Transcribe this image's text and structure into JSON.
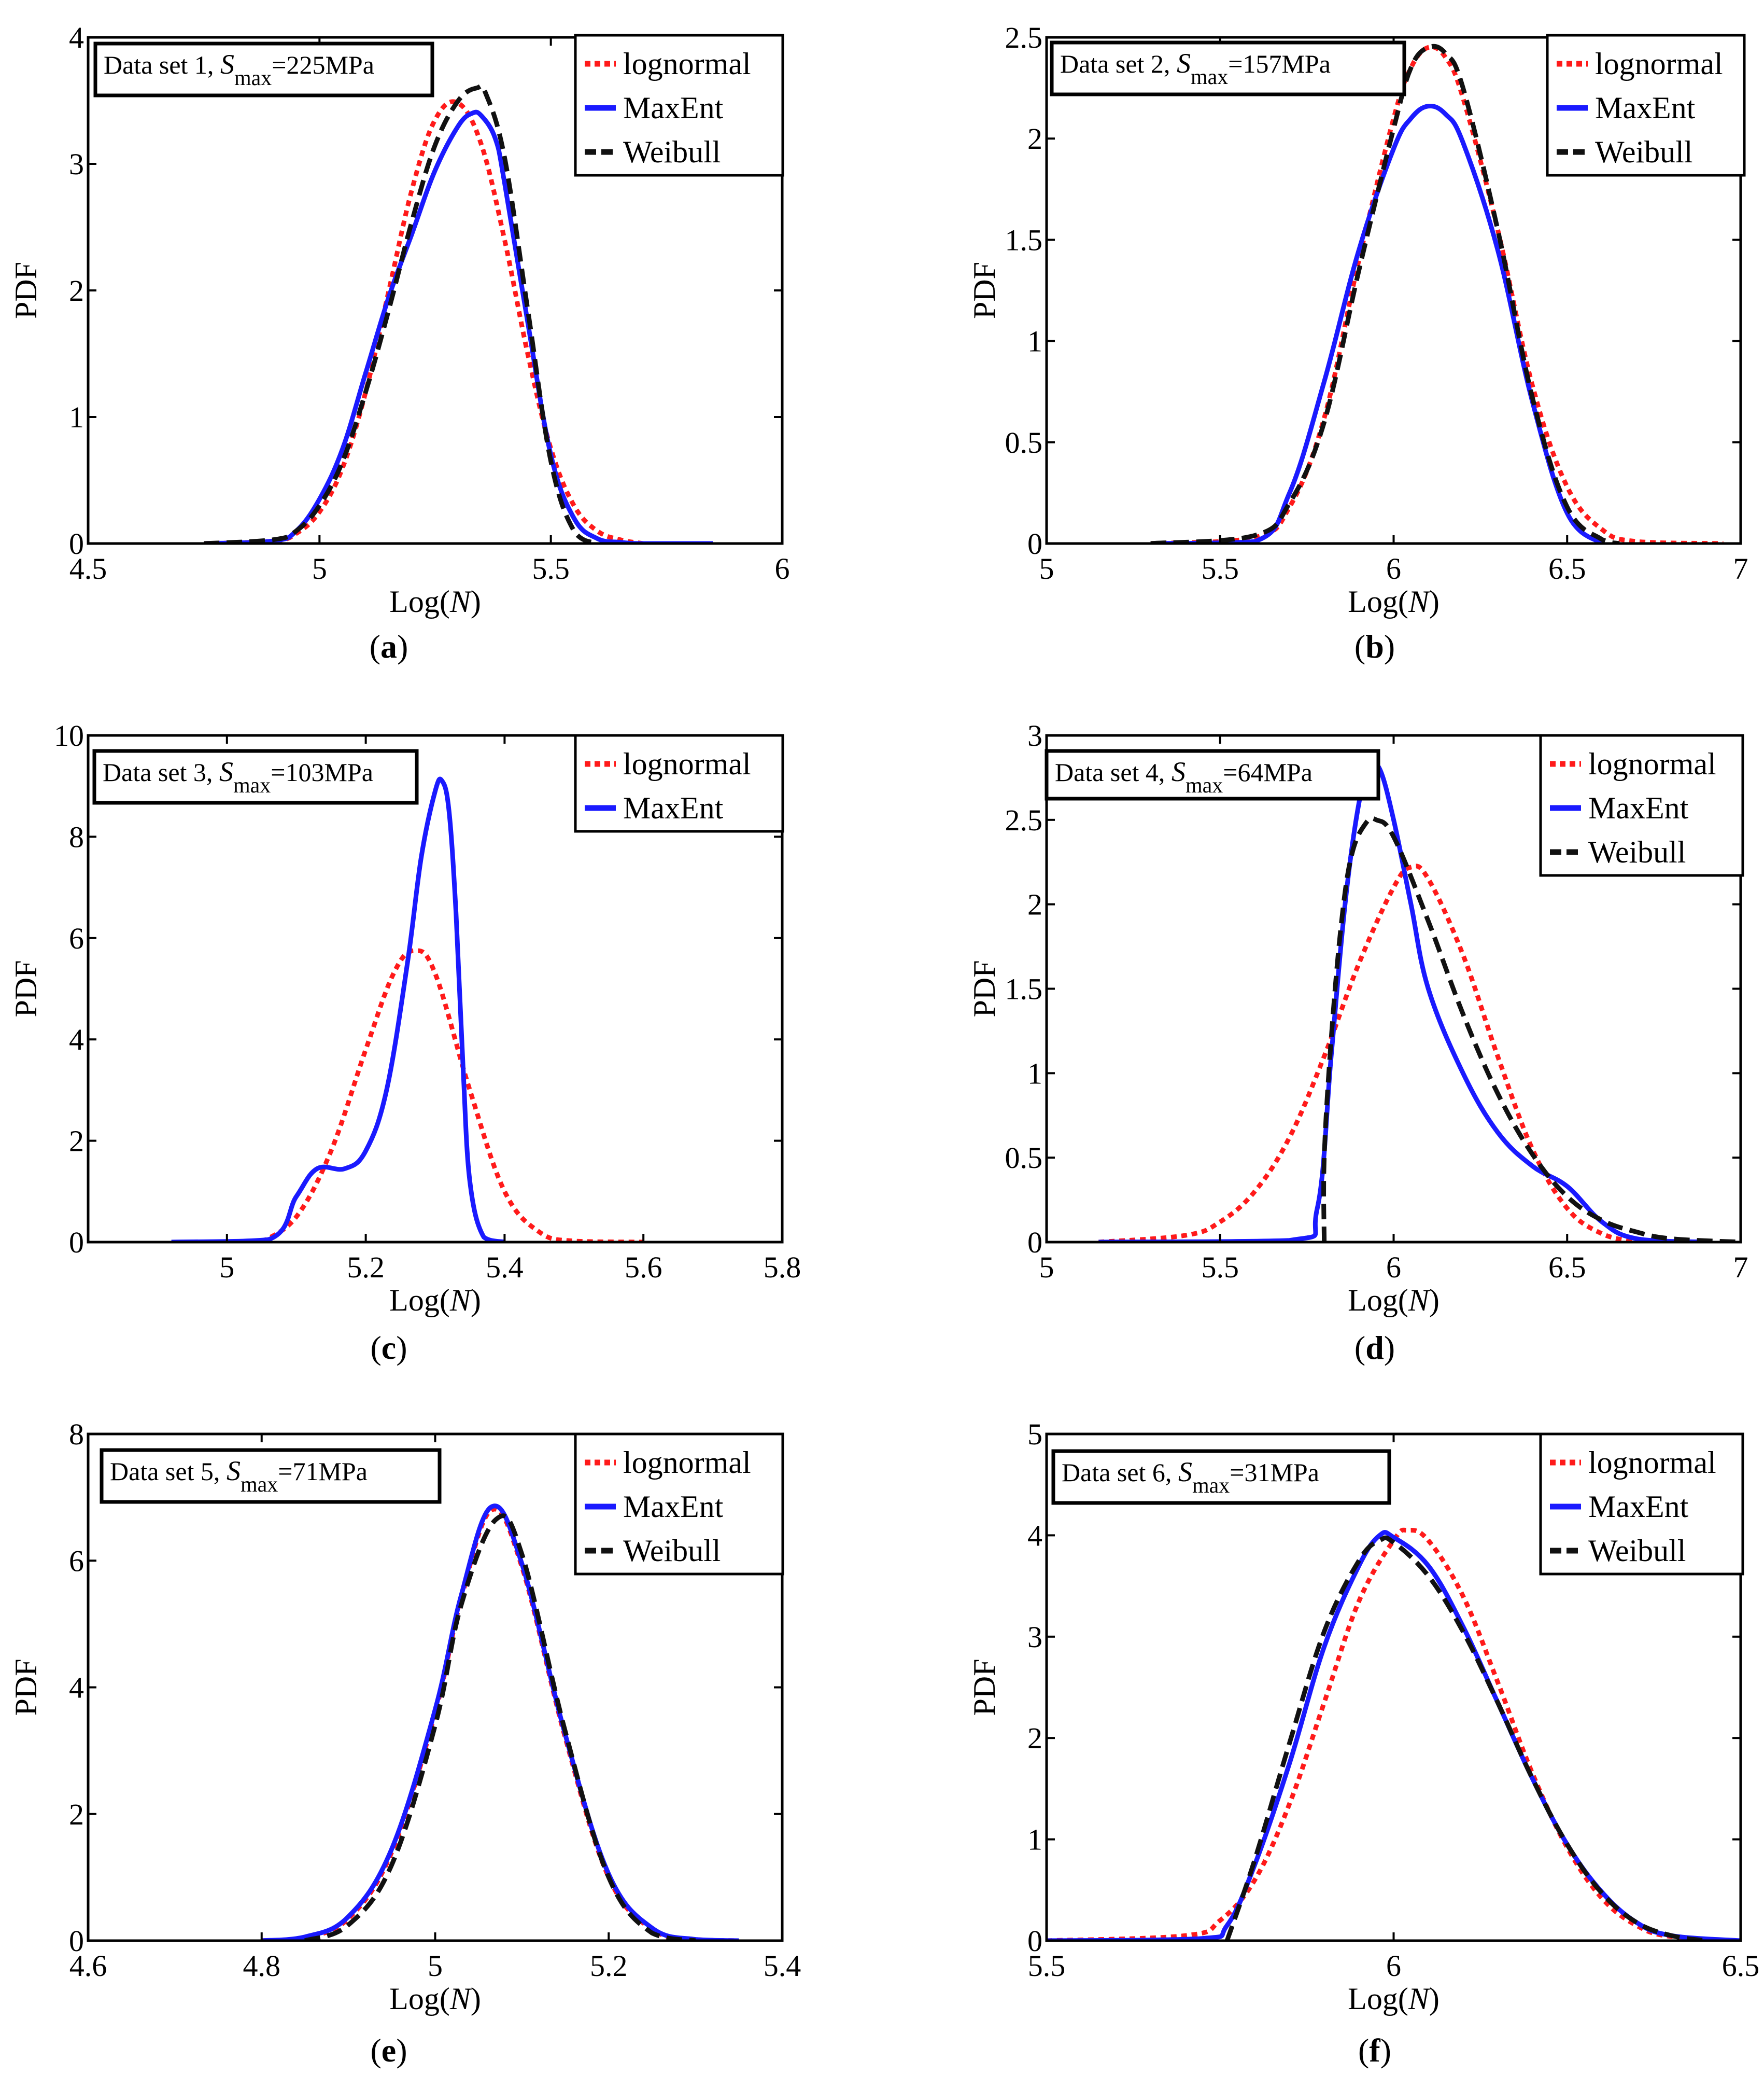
{
  "figure": {
    "series_styles": {
      "lognormal": {
        "color": "#ff1a1a",
        "dash": "dotted"
      },
      "MaxEnt": {
        "color": "#1a1aff",
        "dash": "solid"
      },
      "Weibull": {
        "color": "#111111",
        "dash": "dashed"
      }
    }
  },
  "chart_data": [
    {
      "id": "a",
      "type": "line",
      "caption": "a",
      "info": {
        "prefix": "Data set 1, ",
        "S": "S",
        "sub": "max",
        "suffix": "=225MPa"
      },
      "xlabel": "Log(N)",
      "ylabel": "PDF",
      "xlim": [
        4.5,
        6
      ],
      "ylim": [
        0,
        4
      ],
      "xticks": [
        4.5,
        5,
        5.5,
        6
      ],
      "yticks": [
        0,
        1,
        2,
        3,
        4
      ],
      "xtick_labels": [
        "4.5",
        "5",
        "5.5",
        "6"
      ],
      "ytick_labels": [
        "0",
        "1",
        "2",
        "3",
        "4"
      ],
      "legend": [
        "lognormal",
        "MaxEnt",
        "Weibull"
      ],
      "series": [
        {
          "name": "lognormal",
          "x": [
            4.75,
            4.9,
            4.95,
            5.0,
            5.05,
            5.1,
            5.15,
            5.2,
            5.25,
            5.3,
            5.35,
            5.4,
            5.45,
            5.5,
            5.55,
            5.6,
            5.65,
            5.7
          ],
          "y": [
            0,
            0.02,
            0.08,
            0.25,
            0.6,
            1.2,
            2.0,
            2.8,
            3.35,
            3.48,
            3.15,
            2.4,
            1.5,
            0.75,
            0.3,
            0.1,
            0.03,
            0
          ]
        },
        {
          "name": "MaxEnt",
          "x": [
            4.75,
            4.9,
            4.95,
            5.0,
            5.05,
            5.1,
            5.15,
            5.2,
            5.25,
            5.3,
            5.33,
            5.35,
            5.38,
            5.4,
            5.45,
            5.5,
            5.55,
            5.6,
            5.65,
            5.7,
            5.85
          ],
          "y": [
            0,
            0.02,
            0.1,
            0.35,
            0.75,
            1.35,
            1.95,
            2.45,
            2.95,
            3.3,
            3.4,
            3.38,
            3.2,
            2.85,
            1.75,
            0.7,
            0.2,
            0.04,
            0.01,
            0,
            0
          ]
        },
        {
          "name": "Weibull",
          "x": [
            4.75,
            4.9,
            4.95,
            5.0,
            5.05,
            5.1,
            5.15,
            5.2,
            5.25,
            5.3,
            5.34,
            5.36,
            5.4,
            5.45,
            5.5,
            5.55,
            5.6
          ],
          "y": [
            0,
            0.03,
            0.1,
            0.3,
            0.65,
            1.2,
            1.85,
            2.55,
            3.15,
            3.5,
            3.6,
            3.55,
            3.05,
            1.85,
            0.65,
            0.1,
            0
          ]
        }
      ]
    },
    {
      "id": "b",
      "type": "line",
      "caption": "b",
      "info": {
        "prefix": "Data set 2, ",
        "S": "S",
        "sub": "max",
        "suffix": "=157MPa"
      },
      "xlabel": "Log(N)",
      "ylabel": "PDF",
      "xlim": [
        5,
        7
      ],
      "ylim": [
        0,
        2.5
      ],
      "xticks": [
        5,
        5.5,
        6,
        6.5,
        7
      ],
      "yticks": [
        0,
        0.5,
        1,
        1.5,
        2,
        2.5
      ],
      "xtick_labels": [
        "5",
        "5.5",
        "6",
        "6.5",
        "7"
      ],
      "ytick_labels": [
        "0",
        "0.5",
        "1",
        "1.5",
        "2",
        "2.5"
      ],
      "legend": [
        "lognormal",
        "MaxEnt",
        "Weibull"
      ],
      "series": [
        {
          "name": "lognormal",
          "x": [
            5.3,
            5.6,
            5.7,
            5.8,
            5.9,
            6.0,
            6.05,
            6.1,
            6.15,
            6.2,
            6.3,
            6.4,
            6.5,
            6.6,
            6.7,
            6.95
          ],
          "y": [
            0,
            0.03,
            0.18,
            0.62,
            1.4,
            2.1,
            2.35,
            2.45,
            2.4,
            2.2,
            1.55,
            0.78,
            0.28,
            0.07,
            0.01,
            0
          ]
        },
        {
          "name": "MaxEnt",
          "x": [
            5.3,
            5.6,
            5.7,
            5.8,
            5.9,
            6.0,
            6.05,
            6.1,
            6.15,
            6.2,
            6.3,
            6.4,
            6.5,
            6.6
          ],
          "y": [
            0,
            0.01,
            0.25,
            0.8,
            1.45,
            1.95,
            2.1,
            2.16,
            2.12,
            1.98,
            1.45,
            0.7,
            0.15,
            0
          ]
        },
        {
          "name": "Weibull",
          "x": [
            5.3,
            5.6,
            5.7,
            5.8,
            5.9,
            6.0,
            6.05,
            6.1,
            6.15,
            6.2,
            6.3,
            6.4,
            6.5,
            6.6,
            6.65
          ],
          "y": [
            0,
            0.04,
            0.2,
            0.6,
            1.35,
            2.05,
            2.35,
            2.45,
            2.42,
            2.25,
            1.55,
            0.72,
            0.18,
            0.02,
            0
          ]
        }
      ]
    },
    {
      "id": "c",
      "type": "line",
      "caption": "c",
      "info": {
        "prefix": "Data set 3, ",
        "S": "S",
        "sub": "max",
        "suffix": "=103MPa"
      },
      "xlabel": "Log(N)",
      "ylabel": "PDF",
      "xlim": [
        4.8,
        5.8
      ],
      "ylim": [
        0,
        10
      ],
      "xticks": [
        5,
        5.2,
        5.4,
        5.6,
        5.8
      ],
      "yticks": [
        0,
        2,
        4,
        6,
        8,
        10
      ],
      "xtick_labels": [
        "5",
        "5.2",
        "5.4",
        "5.6",
        "5.8"
      ],
      "ytick_labels": [
        "0",
        "2",
        "4",
        "6",
        "8",
        "10"
      ],
      "legend": [
        "lognormal",
        "MaxEnt"
      ],
      "series": [
        {
          "name": "lognormal",
          "x": [
            5.05,
            5.1,
            5.15,
            5.2,
            5.24,
            5.27,
            5.3,
            5.35,
            5.4,
            5.45,
            5.5,
            5.6
          ],
          "y": [
            0,
            0.5,
            1.8,
            3.8,
            5.3,
            5.75,
            5.3,
            3.0,
            1.0,
            0.2,
            0.02,
            0
          ]
        },
        {
          "name": "MaxEnt",
          "x": [
            4.92,
            5.06,
            5.1,
            5.13,
            5.17,
            5.2,
            5.23,
            5.26,
            5.28,
            5.3,
            5.31,
            5.32,
            5.33,
            5.34,
            5.35,
            5.37,
            5.4
          ],
          "y": [
            0,
            0.05,
            0.9,
            1.45,
            1.45,
            1.8,
            3.0,
            5.5,
            7.6,
            8.9,
            9.1,
            8.5,
            6.5,
            3.5,
            1.2,
            0.1,
            0
          ]
        }
      ]
    },
    {
      "id": "d",
      "type": "line",
      "caption": "d",
      "info": {
        "prefix": "Data set 4, ",
        "S": "S",
        "sub": "max",
        "suffix": "=64MPa"
      },
      "xlabel": "Log(N)",
      "ylabel": "PDF",
      "xlim": [
        5,
        7
      ],
      "ylim": [
        0,
        3
      ],
      "xticks": [
        5,
        5.5,
        6,
        6.5,
        7
      ],
      "yticks": [
        0,
        0.5,
        1,
        1.5,
        2,
        2.5,
        3
      ],
      "xtick_labels": [
        "5",
        "5.5",
        "6",
        "6.5",
        "7"
      ],
      "ytick_labels": [
        "0",
        "0.5",
        "1",
        "1.5",
        "2",
        "2.5",
        "3"
      ],
      "legend": [
        "lognormal",
        "MaxEnt",
        "Weibull"
      ],
      "series": [
        {
          "name": "lognormal",
          "x": [
            5.15,
            5.4,
            5.5,
            5.6,
            5.7,
            5.8,
            5.9,
            6.0,
            6.05,
            6.1,
            6.2,
            6.3,
            6.4,
            6.5,
            6.6,
            6.7
          ],
          "y": [
            0,
            0.04,
            0.12,
            0.3,
            0.62,
            1.1,
            1.65,
            2.1,
            2.22,
            2.15,
            1.7,
            1.1,
            0.55,
            0.2,
            0.05,
            0
          ]
        },
        {
          "name": "MaxEnt",
          "x": [
            5.15,
            5.7,
            5.78,
            5.82,
            5.86,
            5.9,
            5.93,
            5.96,
            6.0,
            6.05,
            6.1,
            6.2,
            6.3,
            6.4,
            6.5,
            6.6,
            6.7,
            6.9
          ],
          "y": [
            0,
            0.01,
            0.2,
            1.1,
            2.0,
            2.6,
            2.8,
            2.8,
            2.5,
            2.0,
            1.5,
            1.0,
            0.65,
            0.45,
            0.33,
            0.12,
            0.02,
            0
          ]
        },
        {
          "name": "Weibull",
          "x": [
            5.8,
            5.8,
            5.82,
            5.85,
            5.88,
            5.92,
            5.95,
            6.0,
            6.1,
            6.2,
            6.3,
            6.4,
            6.5,
            6.6,
            6.7,
            6.8,
            7.0
          ],
          "y": [
            0,
            0.5,
            1.2,
            1.9,
            2.3,
            2.48,
            2.5,
            2.4,
            1.9,
            1.35,
            0.88,
            0.52,
            0.27,
            0.13,
            0.06,
            0.02,
            0
          ]
        }
      ]
    },
    {
      "id": "e",
      "type": "line",
      "caption": "e",
      "info": {
        "prefix": "Data set 5, ",
        "S": "S",
        "sub": "max",
        "suffix": "=71MPa"
      },
      "xlabel": "Log(N)",
      "ylabel": "PDF",
      "xlim": [
        4.6,
        5.4
      ],
      "ylim": [
        0,
        8
      ],
      "xticks": [
        4.6,
        4.8,
        5,
        5.2,
        5.4
      ],
      "yticks": [
        0,
        2,
        4,
        6,
        8
      ],
      "xtick_labels": [
        "4.6",
        "4.8",
        "5",
        "5.2",
        "5.4"
      ],
      "ytick_labels": [
        "0",
        "2",
        "4",
        "6",
        "8"
      ],
      "legend": [
        "lognormal",
        "MaxEnt",
        "Weibull"
      ],
      "series": [
        {
          "name": "lognormal",
          "x": [
            4.8,
            4.85,
            4.9,
            4.95,
            5.0,
            5.03,
            5.065,
            5.1,
            5.15,
            5.2,
            5.25,
            5.3,
            5.35
          ],
          "y": [
            0,
            0.05,
            0.35,
            1.4,
            3.6,
            5.4,
            6.8,
            5.9,
            3.2,
            1.0,
            0.18,
            0.02,
            0
          ]
        },
        {
          "name": "MaxEnt",
          "x": [
            4.8,
            4.85,
            4.9,
            4.95,
            5.0,
            5.03,
            5.065,
            5.1,
            5.15,
            5.2,
            5.25,
            5.3,
            5.35
          ],
          "y": [
            0,
            0.06,
            0.38,
            1.45,
            3.65,
            5.45,
            6.85,
            5.95,
            3.25,
            1.05,
            0.2,
            0.02,
            0
          ]
        },
        {
          "name": "Weibull",
          "x": [
            4.85,
            4.9,
            4.95,
            5.0,
            5.03,
            5.07,
            5.1,
            5.15,
            5.2,
            5.25,
            5.3
          ],
          "y": [
            0,
            0.25,
            1.2,
            3.4,
            5.3,
            6.65,
            6.1,
            3.3,
            1.0,
            0.12,
            0
          ]
        }
      ]
    },
    {
      "id": "f",
      "type": "line",
      "caption": "f",
      "info": {
        "prefix": "Data set 6, ",
        "S": "S",
        "sub": "max",
        "suffix": "=31MPa"
      },
      "xlabel": "Log(N)",
      "ylabel": "PDF",
      "xlim": [
        5.5,
        6.5
      ],
      "ylim": [
        0,
        5
      ],
      "xticks": [
        5.5,
        6,
        6.5
      ],
      "yticks": [
        0,
        1,
        2,
        3,
        4,
        5
      ],
      "xtick_labels": [
        "5.5",
        "6",
        "6.5"
      ],
      "ytick_labels": [
        "0",
        "1",
        "2",
        "3",
        "4",
        "5"
      ],
      "legend": [
        "lognormal",
        "MaxEnt",
        "Weibull"
      ],
      "series": [
        {
          "name": "lognormal",
          "x": [
            5.5,
            5.7,
            5.75,
            5.8,
            5.85,
            5.9,
            5.95,
            6.0,
            6.02,
            6.05,
            6.1,
            6.15,
            6.2,
            6.25,
            6.3,
            6.35,
            6.4,
            6.5
          ],
          "y": [
            0,
            0.05,
            0.2,
            0.6,
            1.35,
            2.35,
            3.35,
            3.95,
            4.05,
            3.95,
            3.4,
            2.55,
            1.65,
            0.92,
            0.42,
            0.15,
            0.04,
            0
          ]
        },
        {
          "name": "MaxEnt",
          "x": [
            5.5,
            5.72,
            5.76,
            5.8,
            5.85,
            5.9,
            5.95,
            5.98,
            6.0,
            6.05,
            6.1,
            6.15,
            6.2,
            6.25,
            6.3,
            6.35,
            6.4,
            6.5
          ],
          "y": [
            0,
            0.02,
            0.15,
            0.75,
            1.75,
            2.9,
            3.7,
            4.0,
            3.98,
            3.7,
            3.1,
            2.35,
            1.6,
            0.95,
            0.48,
            0.18,
            0.05,
            0
          ]
        },
        {
          "name": "Weibull",
          "x": [
            5.76,
            5.8,
            5.85,
            5.9,
            5.95,
            5.98,
            6.0,
            6.05,
            6.1,
            6.15,
            6.2,
            6.25,
            6.3,
            6.35,
            6.4,
            6.45
          ],
          "y": [
            0,
            0.8,
            1.95,
            3.05,
            3.75,
            3.95,
            3.93,
            3.6,
            3.05,
            2.35,
            1.6,
            0.95,
            0.47,
            0.18,
            0.05,
            0
          ]
        }
      ]
    }
  ]
}
